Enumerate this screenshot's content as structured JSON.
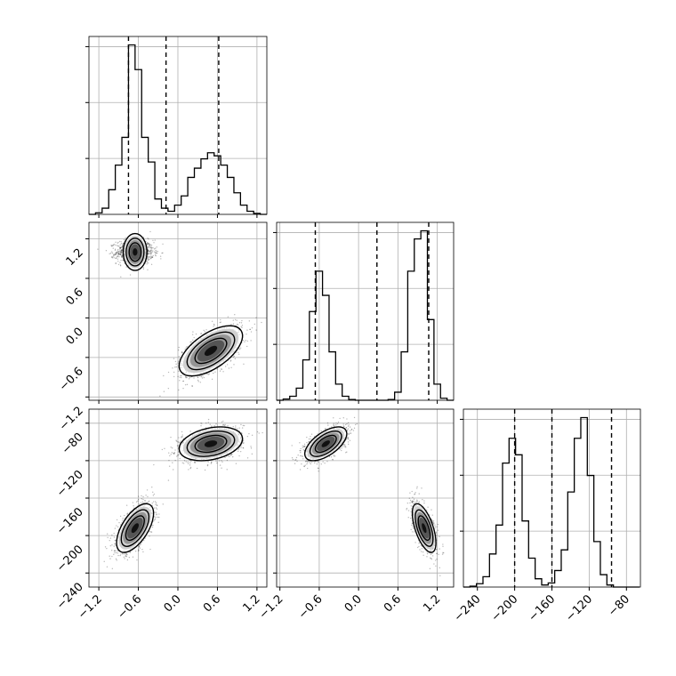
{
  "chart_data": {
    "type": "corner",
    "parameters": [
      {
        "range": [
          -1.35,
          1.35
        ],
        "ticks": [
          -1.2,
          -0.6,
          0.0,
          0.6,
          1.2
        ],
        "tick_labels": [
          "−1.2",
          "−0.6",
          "0.0",
          "0.6",
          "1.2"
        ],
        "quantiles": [
          -0.75,
          -0.18,
          0.62
        ],
        "hist": {
          "bins": [
            -1.35,
            -1.25,
            -1.15,
            -1.05,
            -0.95,
            -0.85,
            -0.75,
            -0.65,
            -0.55,
            -0.45,
            -0.35,
            -0.25,
            -0.15,
            -0.05,
            0.05,
            0.15,
            0.25,
            0.35,
            0.45,
            0.55,
            0.65,
            0.75,
            0.85,
            0.95,
            1.05,
            1.15,
            1.25,
            1.35
          ],
          "counts": [
            0,
            5,
            20,
            80,
            160,
            250,
            550,
            470,
            250,
            170,
            50,
            20,
            10,
            30,
            60,
            120,
            150,
            180,
            200,
            190,
            160,
            120,
            70,
            30,
            10,
            3,
            0
          ]
        }
      },
      {
        "range": [
          -1.25,
          1.45
        ],
        "ticks": [
          -1.2,
          -0.6,
          0.0,
          0.6,
          1.2
        ],
        "tick_labels": [
          "−1.2",
          "−0.6",
          "0.0",
          "0.6",
          "1.2"
        ],
        "quantiles": [
          -0.66,
          0.28,
          1.07
        ],
        "hist": {
          "bins": [
            -1.25,
            -1.15,
            -1.05,
            -0.95,
            -0.85,
            -0.75,
            -0.65,
            -0.55,
            -0.45,
            -0.35,
            -0.25,
            -0.15,
            -0.05,
            0.05,
            0.15,
            0.25,
            0.35,
            0.45,
            0.55,
            0.65,
            0.75,
            0.85,
            0.95,
            1.05,
            1.15,
            1.25,
            1.35,
            1.45
          ],
          "counts": [
            0,
            3,
            10,
            30,
            100,
            220,
            320,
            260,
            120,
            40,
            10,
            2,
            0,
            0,
            0,
            0,
            0,
            2,
            20,
            120,
            320,
            400,
            420,
            200,
            40,
            5,
            0
          ]
        }
      },
      {
        "range": [
          -255,
          -65
        ],
        "ticks": [
          -240,
          -200,
          -160,
          -120,
          -80
        ],
        "tick_labels": [
          "−240",
          "−200",
          "−160",
          "−120",
          "−80"
        ],
        "quantiles": [
          -200,
          -160,
          -96
        ],
        "hist": {
          "bins": [
            -255,
            -248,
            -241,
            -234,
            -227,
            -220,
            -213,
            -206,
            -199,
            -192,
            -185,
            -178,
            -171,
            -164,
            -157,
            -150,
            -143,
            -136,
            -129,
            -122,
            -115,
            -108,
            -101,
            -94,
            -87,
            -80,
            -73,
            -66
          ],
          "counts": [
            0,
            2,
            8,
            25,
            80,
            150,
            300,
            360,
            320,
            160,
            70,
            20,
            5,
            10,
            40,
            90,
            230,
            360,
            410,
            270,
            110,
            30,
            5,
            0,
            0,
            0,
            0
          ]
        }
      }
    ],
    "pairs": [
      {
        "row": 1,
        "col": 0,
        "clusters": [
          {
            "mean": [
              -0.65,
              1.0
            ],
            "sd": [
              0.14,
              0.09
            ],
            "rho": 0.0,
            "weight": 0.5
          },
          {
            "mean": [
              0.5,
              -0.5
            ],
            "sd": [
              0.24,
              0.19
            ],
            "rho": 0.6,
            "weight": 0.5
          }
        ]
      },
      {
        "row": 2,
        "col": 0,
        "clusters": [
          {
            "mean": [
              -0.65,
              -192
            ],
            "sd": [
              0.14,
              13
            ],
            "rho": 0.6,
            "weight": 0.5
          },
          {
            "mean": [
              0.5,
              -102
            ],
            "sd": [
              0.24,
              9
            ],
            "rho": 0.3,
            "weight": 0.5
          }
        ]
      },
      {
        "row": 2,
        "col": 1,
        "clusters": [
          {
            "mean": [
              -0.5,
              -102
            ],
            "sd": [
              0.16,
              9
            ],
            "rho": 0.6,
            "weight": 0.5
          },
          {
            "mean": [
              1.0,
              -192
            ],
            "sd": [
              0.09,
              13
            ],
            "rho": -0.6,
            "weight": 0.5
          }
        ]
      }
    ],
    "grid": true,
    "title": "",
    "axis_labels": []
  }
}
